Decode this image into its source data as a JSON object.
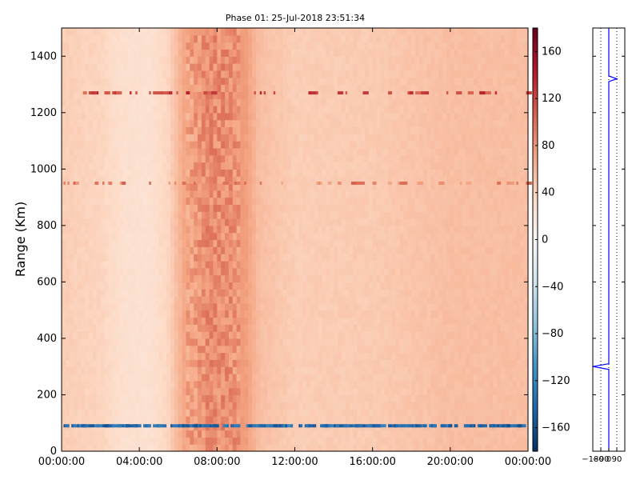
{
  "chart_data": [
    {
      "type": "heatmap",
      "title": "Phase 01: 25-Jul-2018 23:51:34",
      "xlabel": "",
      "ylabel": "Range (Km)",
      "x_ticks": [
        "00:00:00",
        "04:00:00",
        "08:00:00",
        "12:00:00",
        "16:00:00",
        "20:00:00",
        "00:00:00"
      ],
      "x_range_hours": [
        0,
        24
      ],
      "y_ticks": [
        0,
        200,
        400,
        600,
        800,
        1000,
        1200,
        1400
      ],
      "ylim": [
        0,
        1500
      ],
      "colorbar": {
        "ticks": [
          160,
          120,
          80,
          40,
          0,
          -40,
          -80,
          -120,
          -160
        ],
        "range": [
          -180,
          180
        ],
        "colormap": "RdBu_r"
      },
      "background_phase_profile": [
        {
          "hour": 0,
          "value": 45
        },
        {
          "hour": 2,
          "value": 40
        },
        {
          "hour": 3.2,
          "value": 30
        },
        {
          "hour": 4.5,
          "value": 28
        },
        {
          "hour": 5.5,
          "value": 40
        },
        {
          "hour": 6.3,
          "value": 70
        },
        {
          "hour": 7.5,
          "value": 85
        },
        {
          "hour": 8.5,
          "value": 85
        },
        {
          "hour": 9.5,
          "value": 75
        },
        {
          "hour": 10.2,
          "value": 55
        },
        {
          "hour": 12,
          "value": 45
        },
        {
          "hour": 16,
          "value": 47
        },
        {
          "hour": 20,
          "value": 55
        },
        {
          "hour": 24,
          "value": 55
        }
      ],
      "noisy_band_hours": [
        6.5,
        9.2
      ],
      "interference_rows_km": [
        {
          "range_km": 1270,
          "value": 120
        },
        {
          "range_km": 950,
          "value": 90
        },
        {
          "range_km": 90,
          "value": -140
        }
      ]
    },
    {
      "type": "line",
      "xlabel": "",
      "ylabel": "",
      "x_ticks": [
        "−180",
        "−90",
        "0",
        "90"
      ],
      "xlim": [
        -180,
        180
      ],
      "ylim": [
        0,
        1500
      ],
      "series": [
        {
          "points": [
            {
              "range_km": 0,
              "phase": 0
            },
            {
              "range_km": 290,
              "phase": 0
            },
            {
              "range_km": 300,
              "phase": -180
            },
            {
              "range_km": 310,
              "phase": 0
            },
            {
              "range_km": 1310,
              "phase": 0
            },
            {
              "range_km": 1320,
              "phase": 90
            },
            {
              "range_km": 1330,
              "phase": 0
            },
            {
              "range_km": 1500,
              "phase": 0
            }
          ]
        }
      ]
    }
  ]
}
